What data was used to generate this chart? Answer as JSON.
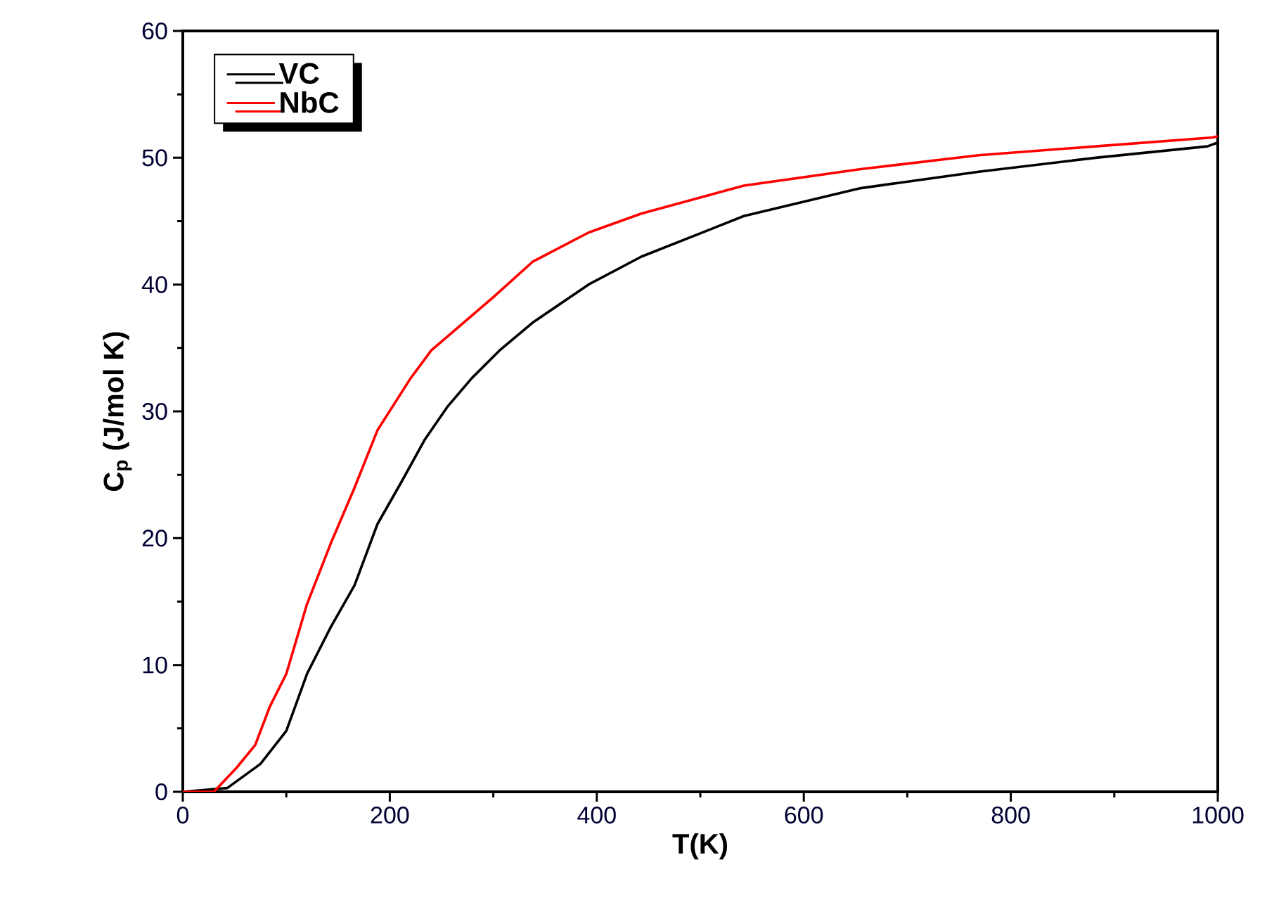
{
  "chart_data": {
    "type": "line",
    "xlabel": "T(K)",
    "ylabel": "C$_{p}$ (J/mol K)",
    "xlim": [
      0,
      1000
    ],
    "ylim": [
      0,
      60
    ],
    "xticks": [
      0,
      200,
      400,
      600,
      800,
      1000
    ],
    "yticks": [
      0,
      10,
      20,
      30,
      40,
      50,
      60
    ],
    "legend": "top left",
    "grid": false,
    "line_style": "solid",
    "series": [
      {
        "name": "VC",
        "color": "#000000",
        "x": [
          0,
          43,
          75,
          100,
          120,
          143,
          166,
          188,
          211,
          234,
          256,
          279,
          306,
          338,
          392,
          443,
          542,
          655,
          769,
          882,
          990,
          1000
        ],
        "values": [
          0,
          0.3,
          2.2,
          4.8,
          9.3,
          13,
          16.3,
          21.1,
          24.4,
          27.8,
          30.4,
          32.6,
          34.8,
          37.0,
          40.0,
          42.2,
          45.4,
          47.6,
          48.9,
          50.0,
          50.9,
          51.2
        ]
      },
      {
        "name": "NbC",
        "color": "#ff0000",
        "x": [
          0,
          30,
          52,
          70,
          84,
          100,
          120,
          143,
          166,
          188,
          220,
          240,
          300,
          338,
          392,
          443,
          542,
          655,
          769,
          882,
          995,
          1000
        ],
        "values": [
          0,
          0,
          1.9,
          3.7,
          6.7,
          9.3,
          14.8,
          19.6,
          24,
          28.5,
          32.6,
          34.8,
          39,
          41.8,
          44.1,
          45.6,
          47.8,
          49.1,
          50.2,
          50.9,
          51.6,
          51.7
        ]
      }
    ]
  }
}
